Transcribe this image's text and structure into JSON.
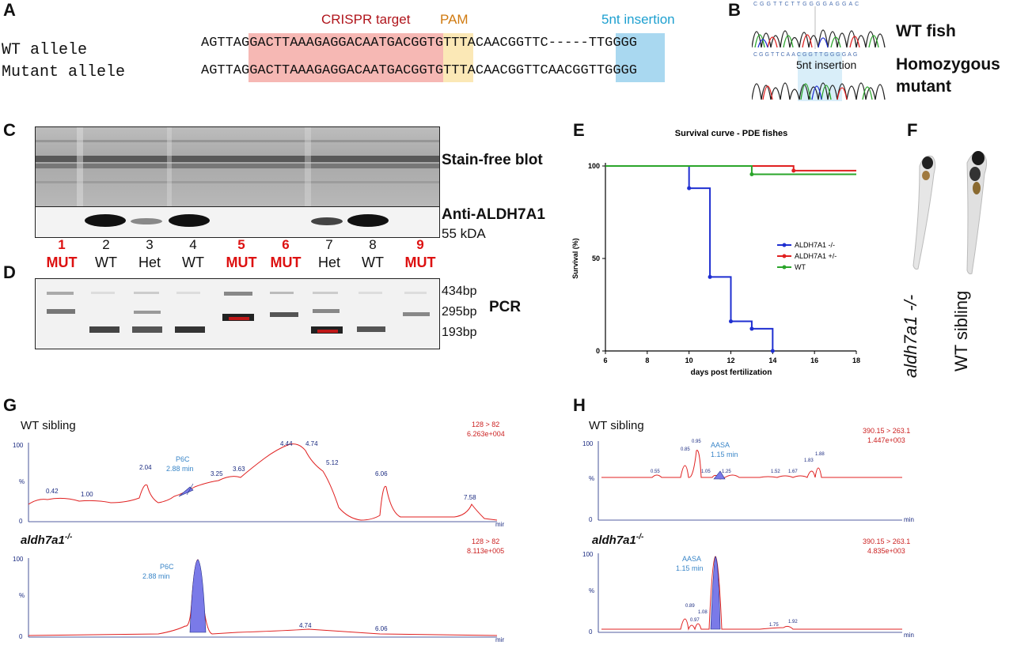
{
  "panels": {
    "A": {
      "letter": "A",
      "crispr_label": "CRISPR target",
      "pam_label": "PAM",
      "insertion_label": "5nt insertion",
      "alleles": [
        {
          "name": "WT allele",
          "p1": "AGTTA",
          "target": "GGACTTAAAGAGGACAATGA",
          "pam": "CGG",
          "mid": "TGTTTACAACGGTTC",
          "ins": "-----",
          "end": "TTGGGG"
        },
        {
          "name": "Mutant allele",
          "p1": "AGTTA",
          "target": "GGACTTAAAGAGGACAATGA",
          "pam": "CGG",
          "mid": "TGTTTACAACGGTTC",
          "ins": "AACGG",
          "end": "TTGGGG"
        }
      ]
    },
    "B": {
      "letter": "B",
      "top_bases": "CGGTTCTTGGGGAGGAC",
      "bottom_bases": "CGGTTCAACGGTTGGGGAG",
      "insertion_label": "5nt insertion",
      "wt_label": "WT fish",
      "mut_label_1": "Homozygous",
      "mut_label_2": "mutant"
    },
    "C": {
      "letter": "C",
      "stain_label": "Stain-free blot",
      "anti_label": "Anti-ALDH7A1",
      "kda_label": "55 kDA",
      "lane_numbers": [
        "1",
        "2",
        "3",
        "4",
        "5",
        "6",
        "7",
        "8",
        "9"
      ],
      "lane_genotypes": [
        "MUT",
        "WT",
        "Het",
        "WT",
        "MUT",
        "MUT",
        "Het",
        "WT",
        "MUT"
      ]
    },
    "D": {
      "letter": "D",
      "pcr_label": "PCR",
      "bp_labels": [
        "434bp",
        "295bp",
        "193bp"
      ]
    },
    "E": {
      "letter": "E",
      "chart_data": {
        "type": "line",
        "title": "Survival curve - PDE fishes",
        "xlabel": "days post fertilization",
        "ylabel": "Survival (%)",
        "xlim": [
          6,
          18
        ],
        "ylim": [
          0,
          100
        ],
        "xticks": [
          6,
          8,
          10,
          12,
          14,
          16,
          18
        ],
        "yticks": [
          0,
          50,
          100
        ],
        "legend_position": "right",
        "series": [
          {
            "name": "ALDH7A1 -/-",
            "color": "#1f2fd1",
            "x": [
              6,
              10,
              11,
              12,
              13,
              14
            ],
            "y": [
              100,
              88,
              40,
              16,
              12,
              0
            ],
            "x_end": 14
          },
          {
            "name": "ALDH7A1 +/-",
            "color": "#e02020",
            "x": [
              6,
              15
            ],
            "y": [
              100,
              97.5
            ],
            "x_end": 18
          },
          {
            "name": "WT",
            "color": "#2aa52a",
            "x": [
              6,
              13
            ],
            "y": [
              100,
              95.5
            ],
            "x_end": 18
          }
        ]
      }
    },
    "F": {
      "letter": "F",
      "mut_label": "aldh7a1 -/-",
      "wt_label": "WT sibling"
    },
    "G": {
      "letter": "G",
      "top": {
        "sample": "WT sibling",
        "transition": "128 > 82",
        "intensity": "6.263e+004",
        "peak_name": "P6C",
        "peak_time": "2.88 min",
        "peaks": [
          "0.42",
          "1.00",
          "2.04",
          "3.25",
          "3.63",
          "4.44",
          "4.74",
          "5.12",
          "6.06",
          "7.58"
        ]
      },
      "bottom": {
        "sample": "aldh7a1",
        "sample_sup": "-/-",
        "transition": "128 > 82",
        "intensity": "8.113e+005",
        "peak_name": "P6C",
        "peak_time": "2.88 min",
        "peaks": [
          "4.74",
          "6.06"
        ]
      },
      "y_top": "100",
      "y_mid": "%",
      "y_zero": "0",
      "x_unit": "mir"
    },
    "H": {
      "letter": "H",
      "top": {
        "sample": "WT sibling",
        "transition": "390.15 > 263.1",
        "intensity": "1.447e+003",
        "peak_name": "AASA",
        "peak_time": "1.15 min",
        "peaks": [
          "0.55",
          "0.85",
          "0.95",
          "1.05",
          "1.25",
          "1.52",
          "1.67",
          "1.83",
          "1.88"
        ]
      },
      "bottom": {
        "sample": "aldh7a1",
        "sample_sup": "-/-",
        "transition": "390.15 > 263.1",
        "intensity": "4.835e+003",
        "peak_name": "AASA",
        "peak_time": "1.15 min",
        "peaks": [
          "0.89",
          "0.97",
          "1.08",
          "1.75",
          "1.92"
        ]
      },
      "y_top": "100",
      "y_mid": "%",
      "y_zero": "0",
      "x_unit": "min"
    }
  }
}
